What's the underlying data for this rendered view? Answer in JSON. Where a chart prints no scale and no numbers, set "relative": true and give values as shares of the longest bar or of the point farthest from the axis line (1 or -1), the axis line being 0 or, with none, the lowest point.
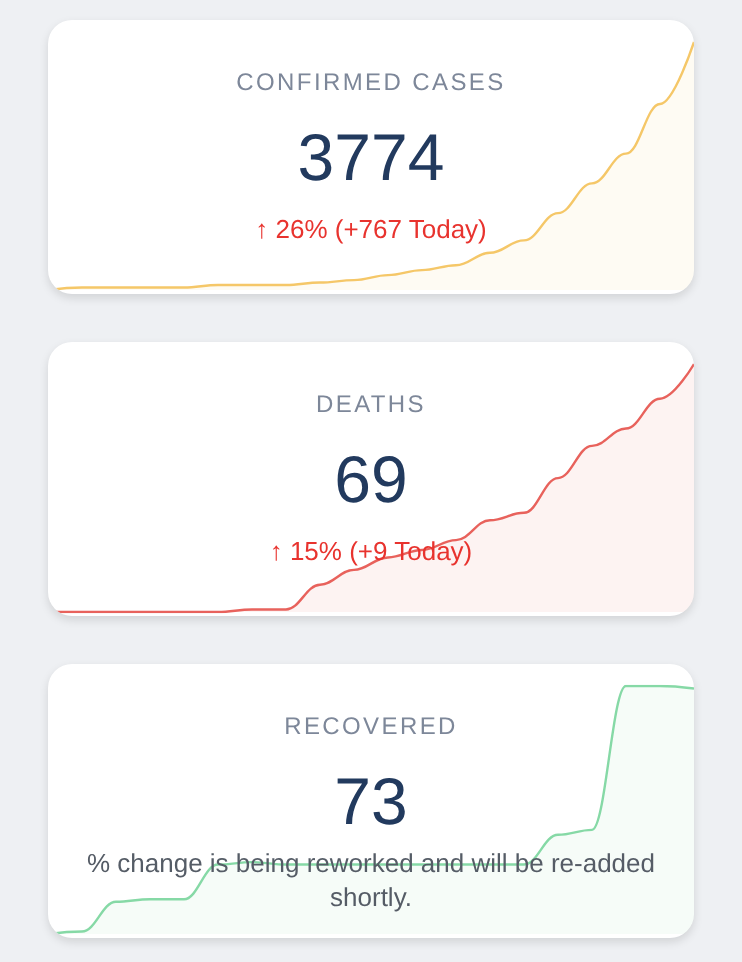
{
  "chart_data": [
    {
      "type": "area",
      "title": "CONFIRMED CASES",
      "annotations": [
        "3774",
        "↑ 26% (+767 Today)"
      ],
      "relative": true,
      "categories": [
        null,
        null,
        null,
        null,
        null,
        null,
        null,
        null,
        null,
        null,
        null,
        null,
        null,
        null,
        null,
        null,
        null,
        null,
        null,
        null
      ],
      "series": [
        {
          "color": "#f5c768",
          "values": [
            0,
            0.01,
            0.01,
            0.01,
            0.01,
            0.02,
            0.02,
            0.02,
            0.03,
            0.04,
            0.06,
            0.08,
            0.1,
            0.15,
            0.2,
            0.31,
            0.43,
            0.55,
            0.75,
            1
          ]
        }
      ]
    },
    {
      "type": "area",
      "title": "DEATHS",
      "annotations": [
        "69",
        "↑ 15% (+9 Today)"
      ],
      "relative": true,
      "categories": [
        null,
        null,
        null,
        null,
        null,
        null,
        null,
        null,
        null,
        null,
        null,
        null,
        null,
        null,
        null,
        null,
        null,
        null,
        null,
        null
      ],
      "series": [
        {
          "color": "#e8625c",
          "values": [
            0,
            0,
            0,
            0,
            0,
            0,
            0.01,
            0.01,
            0.11,
            0.17,
            0.22,
            0.25,
            0.29,
            0.37,
            0.4,
            0.54,
            0.67,
            0.74,
            0.86,
            1
          ]
        }
      ]
    },
    {
      "type": "area",
      "title": "RECOVERED",
      "annotations": [
        "73",
        "% change is being reworked and will be re-added shortly."
      ],
      "relative": true,
      "categories": [
        null,
        null,
        null,
        null,
        null,
        null,
        null,
        null,
        null,
        null,
        null,
        null,
        null,
        null,
        null,
        null,
        null,
        null,
        null,
        null
      ],
      "series": [
        {
          "color": "#86d9a6",
          "values": [
            0,
            0.01,
            0.13,
            0.14,
            0.14,
            0.28,
            0.29,
            0.28,
            0.28,
            0.28,
            0.28,
            0.28,
            0.28,
            0.28,
            0.28,
            0.4,
            0.42,
            1,
            1,
            0.99
          ]
        }
      ]
    }
  ]
}
